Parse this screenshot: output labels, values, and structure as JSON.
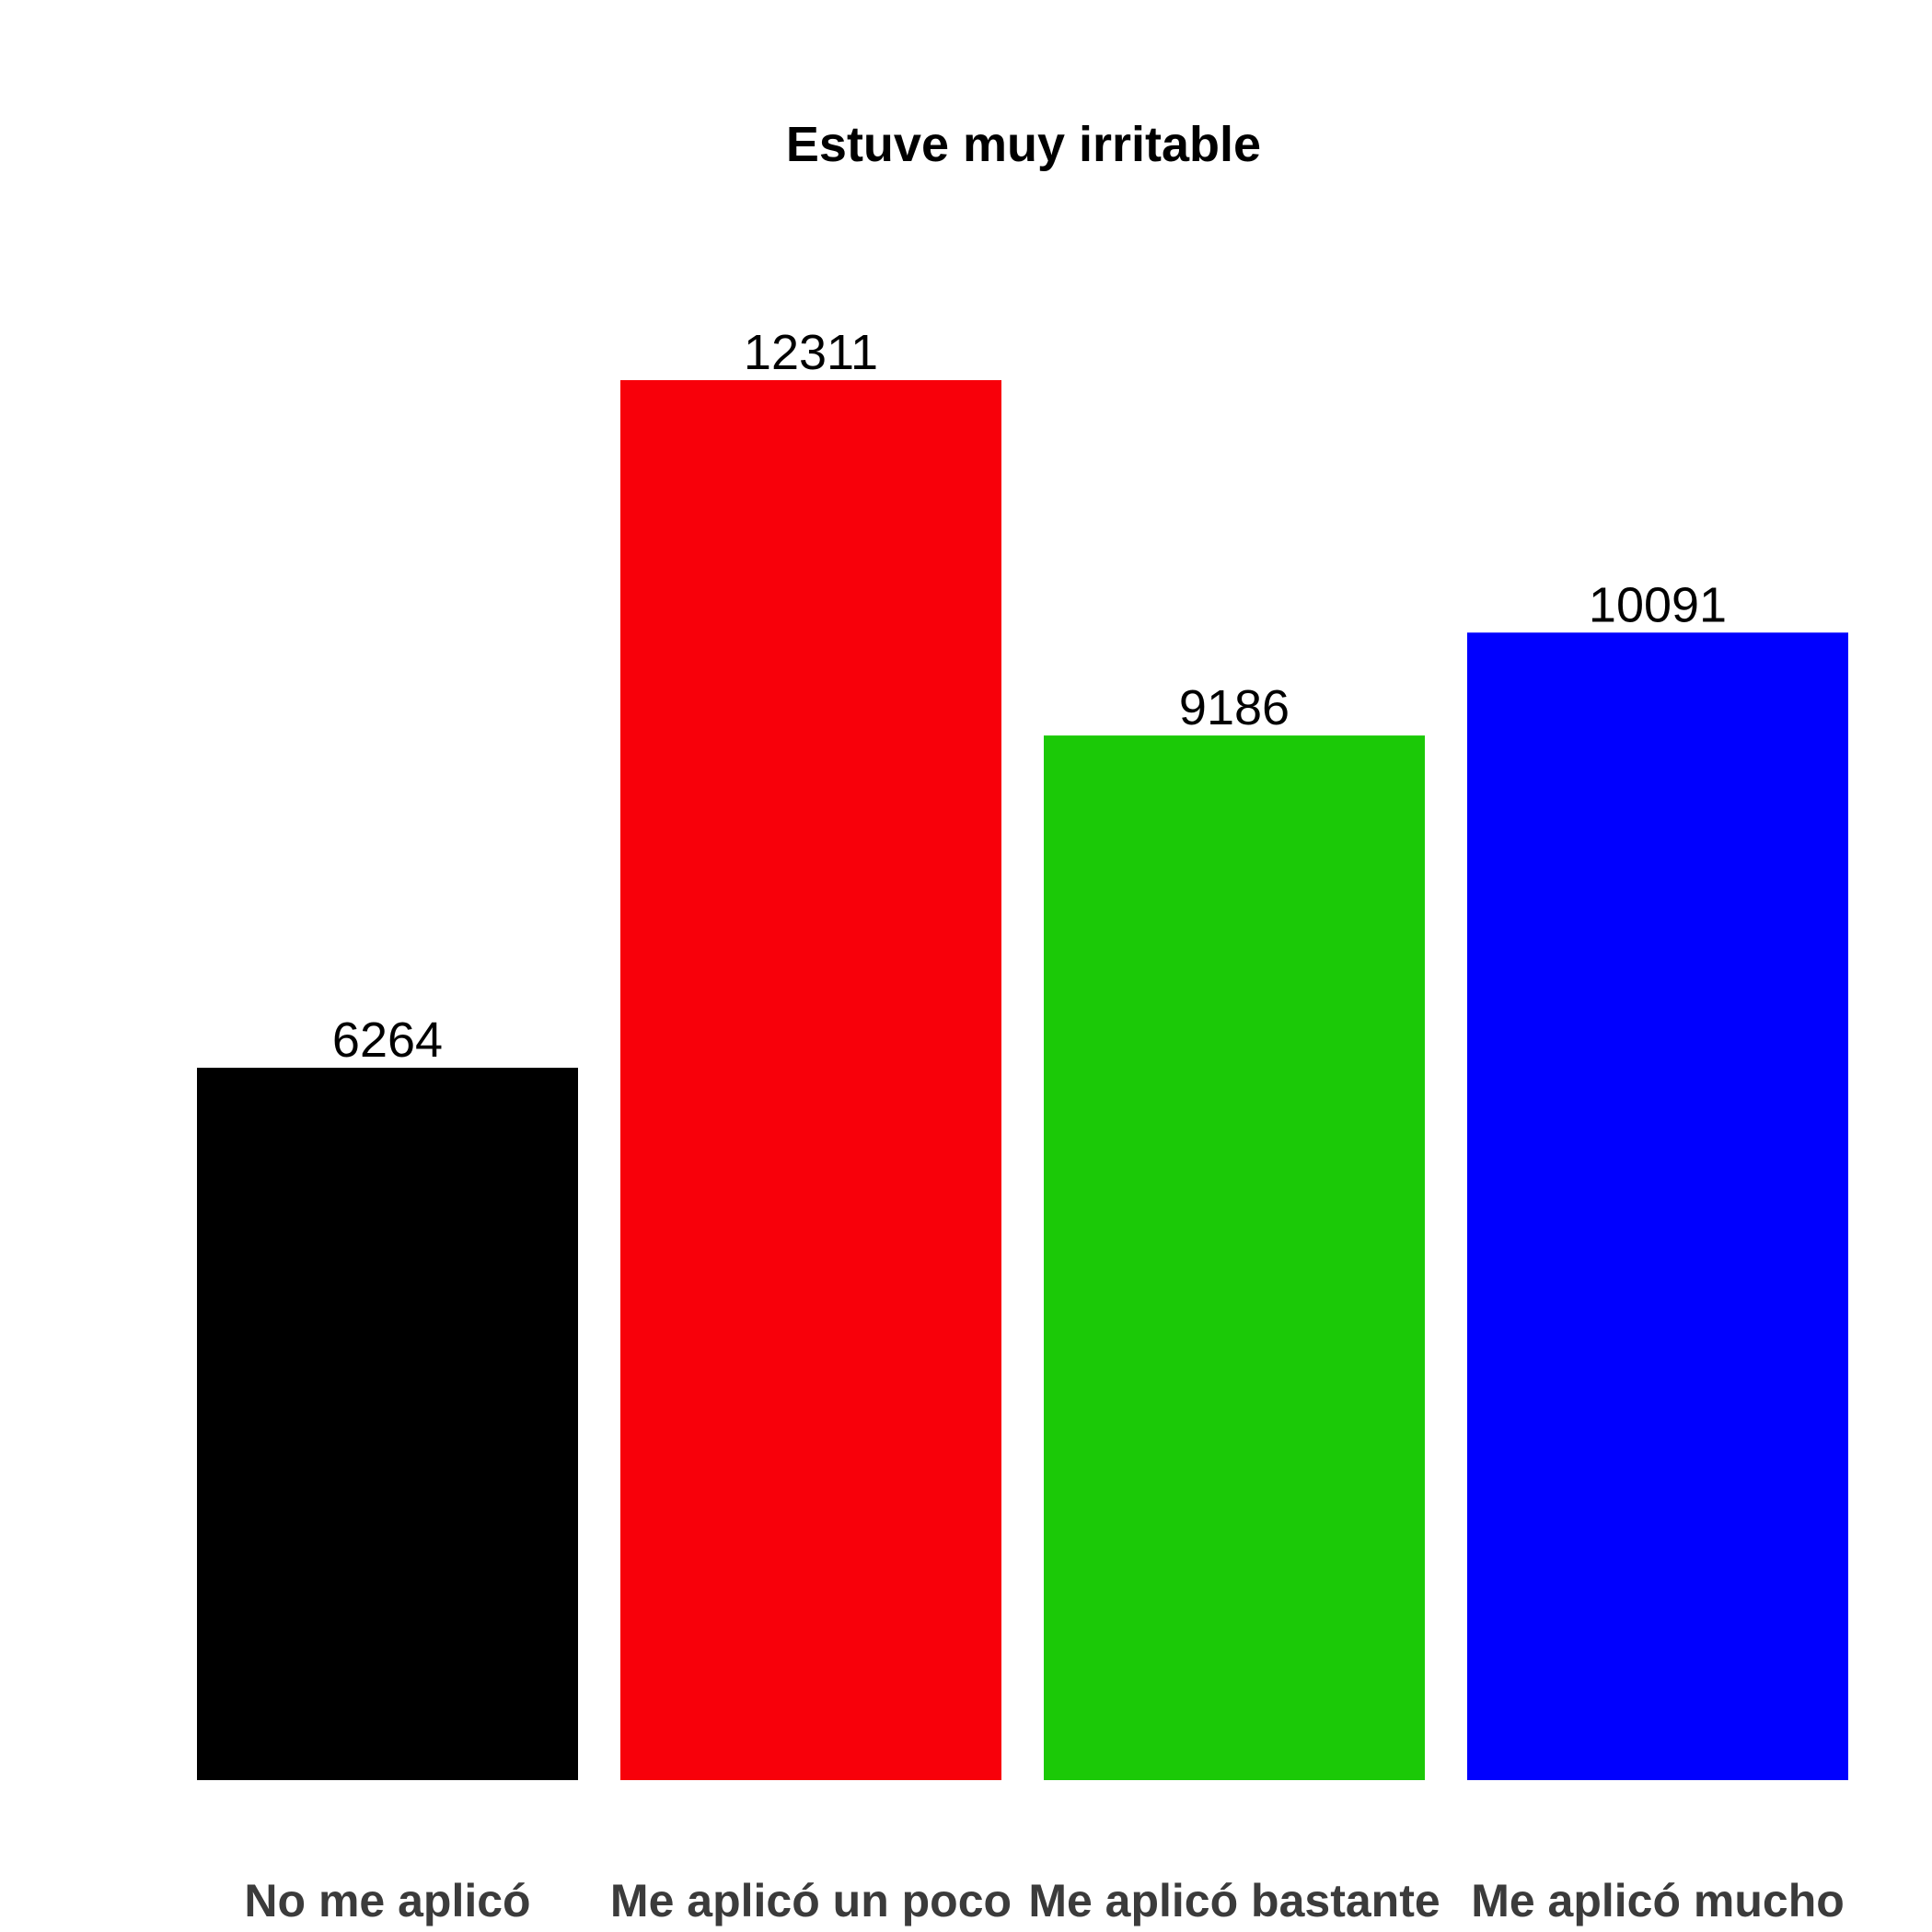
{
  "chart_data": {
    "type": "bar",
    "title": "Estuve muy irritable",
    "xlabel": "",
    "ylabel": "",
    "categories": [
      "No me aplicó",
      "Me aplicó un poco",
      "Me aplicó bastante",
      "Me aplicó mucho"
    ],
    "values": [
      6264,
      12311,
      9186,
      10091
    ],
    "data_labels": [
      "6264",
      "12311",
      "9186",
      "10091"
    ],
    "colors": [
      "#000000",
      "#f8000a",
      "#1bc907",
      "#0000ff"
    ],
    "ylim": [
      0,
      12311
    ],
    "grid": false,
    "legend": "none"
  }
}
